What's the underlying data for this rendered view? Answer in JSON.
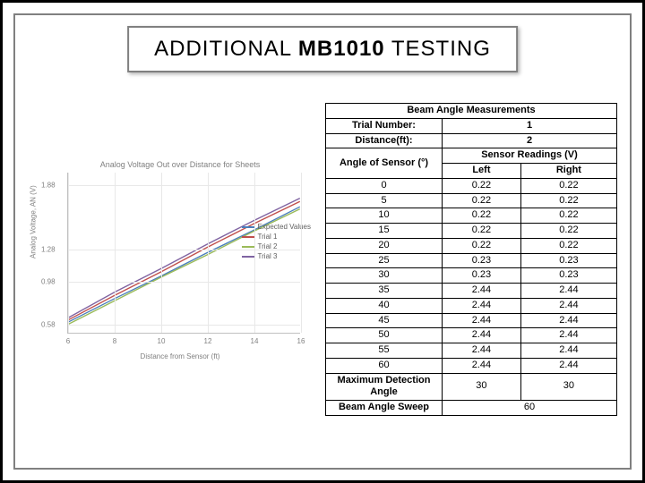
{
  "title": {
    "t1": "ADDITIONAL ",
    "t2": "MB1010",
    "t3": " TESTING"
  },
  "chart": {
    "title": "Analog Voltage Out over Distance for Sheets",
    "xlabel": "Distance from Sensor (ft)",
    "ylabel": "Analog Voltage, AN (V)",
    "xlim": [
      6,
      16
    ],
    "ylim": [
      0.5,
      2.0
    ],
    "yticks": [
      0.58,
      0.98,
      1.28,
      1.88
    ],
    "xticks": [
      6,
      8,
      10,
      12,
      14,
      16
    ],
    "grid_color": "#e8e8e8",
    "axis_color": "#c0c0c0",
    "label_color": "#808080",
    "line_width": 1.4,
    "series": [
      {
        "name": "Expected Values",
        "color": "#4a7ebb",
        "points": [
          [
            6,
            0.6
          ],
          [
            8,
            0.82
          ],
          [
            10,
            1.03
          ],
          [
            12,
            1.25
          ],
          [
            14,
            1.46
          ],
          [
            16,
            1.68
          ]
        ]
      },
      {
        "name": "Trial 1",
        "color": "#c0504d",
        "points": [
          [
            6,
            0.62
          ],
          [
            8,
            0.85
          ],
          [
            10,
            1.07
          ],
          [
            12,
            1.3
          ],
          [
            14,
            1.52
          ],
          [
            16,
            1.73
          ]
        ]
      },
      {
        "name": "Trial 2",
        "color": "#9bbb59",
        "points": [
          [
            6,
            0.58
          ],
          [
            8,
            0.8
          ],
          [
            10,
            1.02
          ],
          [
            12,
            1.23
          ],
          [
            14,
            1.45
          ],
          [
            16,
            1.66
          ]
        ]
      },
      {
        "name": "Trial 3",
        "color": "#8064a2",
        "points": [
          [
            6,
            0.64
          ],
          [
            8,
            0.88
          ],
          [
            10,
            1.1
          ],
          [
            12,
            1.33
          ],
          [
            14,
            1.55
          ],
          [
            16,
            1.76
          ]
        ]
      }
    ]
  },
  "table": {
    "border_color": "#000000",
    "font_size": 11,
    "section_title": "Beam Angle Measurements",
    "trial_label": "Trial Number:",
    "trial_value": "1",
    "distance_label": "Distance(ft):",
    "distance_value": "2",
    "angle_header": "Angle of Sensor (°)",
    "readings_header": "Sensor Readings (V)",
    "left_label": "Left",
    "right_label": "Right",
    "rows": [
      {
        "angle": "0",
        "left": "0.22",
        "right": "0.22"
      },
      {
        "angle": "5",
        "left": "0.22",
        "right": "0.22"
      },
      {
        "angle": "10",
        "left": "0.22",
        "right": "0.22"
      },
      {
        "angle": "15",
        "left": "0.22",
        "right": "0.22"
      },
      {
        "angle": "20",
        "left": "0.22",
        "right": "0.22"
      },
      {
        "angle": "25",
        "left": "0.23",
        "right": "0.23"
      },
      {
        "angle": "30",
        "left": "0.23",
        "right": "0.23"
      },
      {
        "angle": "35",
        "left": "2.44",
        "right": "2.44"
      },
      {
        "angle": "40",
        "left": "2.44",
        "right": "2.44"
      },
      {
        "angle": "45",
        "left": "2.44",
        "right": "2.44"
      },
      {
        "angle": "50",
        "left": "2.44",
        "right": "2.44"
      },
      {
        "angle": "55",
        "left": "2.44",
        "right": "2.44"
      },
      {
        "angle": "60",
        "left": "2.44",
        "right": "2.44"
      }
    ],
    "max_detect_label": "Maximum Detection Angle",
    "max_detect_left": "30",
    "max_detect_right": "30",
    "sweep_label": "Beam Angle Sweep",
    "sweep_value": "60"
  }
}
